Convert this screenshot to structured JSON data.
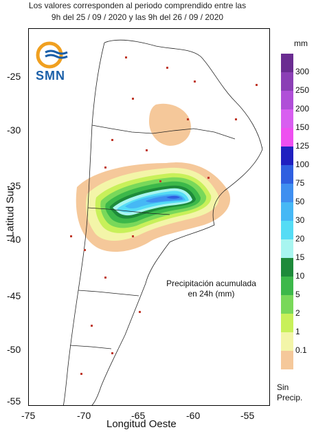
{
  "header": {
    "line1": "Los valores corresponden al periodo comprendido entre las",
    "line2": "9h del 25 / 09 / 2020  y las 9h del 26 / 09 / 2020"
  },
  "logo": {
    "text": "SMN",
    "icon": "smn-sun-waves-logo"
  },
  "axes": {
    "xlabel": "Longitud Oeste",
    "ylabel": "Latitud Sur",
    "xticks": [
      "-75",
      "-70",
      "-65",
      "-60",
      "-55"
    ],
    "yticks": [
      "-25",
      "-30",
      "-35",
      "-40",
      "-45",
      "-50",
      "-55"
    ]
  },
  "annotation": {
    "line1": "Precipitación acumulada",
    "line2": "en 24h (mm)"
  },
  "legend": {
    "unit": "mm",
    "levels": [
      {
        "label": "300",
        "color": "#6a2c91"
      },
      {
        "label": "250",
        "color": "#8b3fb5"
      },
      {
        "label": "200",
        "color": "#b04fd8"
      },
      {
        "label": "150",
        "color": "#d85ef0"
      },
      {
        "label": "125",
        "color": "#ee4ff0"
      },
      {
        "label": "100",
        "color": "#2020c0"
      },
      {
        "label": "75",
        "color": "#2f5fe0"
      },
      {
        "label": "50",
        "color": "#3f8ff0"
      },
      {
        "label": "30",
        "color": "#46b8f5"
      },
      {
        "label": "20",
        "color": "#55dcf5"
      },
      {
        "label": "15",
        "color": "#a8f5f0"
      },
      {
        "label": "10",
        "color": "#1e8a3a"
      },
      {
        "label": "5",
        "color": "#3cb84a"
      },
      {
        "label": "2",
        "color": "#79d85a"
      },
      {
        "label": "1",
        "color": "#c8f05a"
      },
      {
        "label": "0.1",
        "color": "#f3f5a8"
      },
      {
        "label": "",
        "color": "#f5c89a"
      }
    ],
    "none_label_1": "Sin",
    "none_label_2": "Precip."
  }
}
